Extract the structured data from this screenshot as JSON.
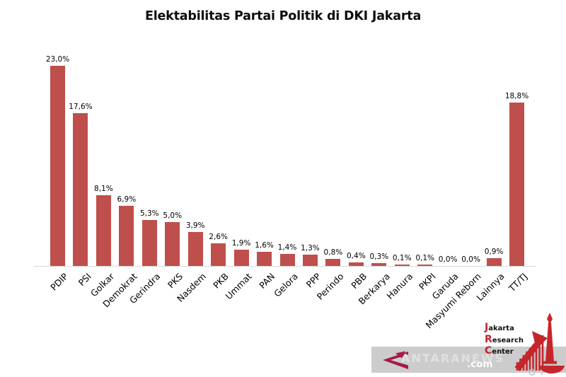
{
  "title": "Elektabilitas Partai Politik di DKI Jakarta",
  "chart_data": {
    "type": "bar",
    "title": "Elektabilitas Partai Politik di DKI Jakarta",
    "categories": [
      "PDIP",
      "PSI",
      "Golkar",
      "Demokrat",
      "Gerindra",
      "PKS",
      "Nasdem",
      "PKB",
      "Ummat",
      "PAN",
      "Gelora",
      "PPP",
      "Perindo",
      "PBB",
      "Berkarya",
      "Hanura",
      "PKPI",
      "Garuda",
      "Masyumi Reborn",
      "Lainnya",
      "TT/TJ"
    ],
    "values": [
      23.0,
      17.6,
      8.1,
      6.9,
      5.3,
      5.0,
      3.9,
      2.6,
      1.9,
      1.6,
      1.4,
      1.3,
      0.8,
      0.4,
      0.3,
      0.1,
      0.1,
      0.0,
      0.0,
      0.9,
      18.8
    ],
    "value_labels": [
      "23,0%",
      "17,6%",
      "8,1%",
      "6,9%",
      "5,3%",
      "5,0%",
      "3,9%",
      "2,6%",
      "1,9%",
      "1,6%",
      "1,4%",
      "1,3%",
      "0,8%",
      "0,4%",
      "0,3%",
      "0,1%",
      "0,1%",
      "0,0%",
      "0,0%",
      "0,9%",
      "18,8%"
    ],
    "xlabel": "",
    "ylabel": "",
    "ylim": [
      0,
      25
    ],
    "grid": false,
    "legend": false,
    "bar_color": "#bf4f4c",
    "label_rotation_deg": 45
  },
  "branding": {
    "jrc": {
      "accent_color": "#c5262c",
      "lines": [
        {
          "initial": "J",
          "rest": "akarta"
        },
        {
          "initial": "R",
          "rest": "esearch"
        },
        {
          "initial": "C",
          "rest": "enter"
        }
      ]
    },
    "watermark": {
      "name": "ANTARANEWS",
      "domain": ".com",
      "strip_color": "#cccccc",
      "logo_color": "#a5194b"
    }
  }
}
